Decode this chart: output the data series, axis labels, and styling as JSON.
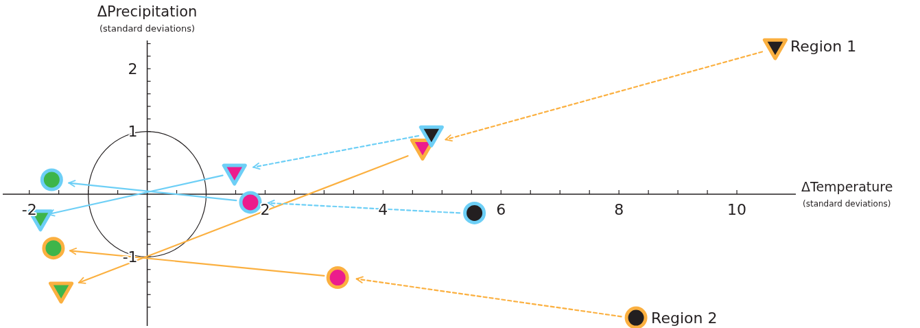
{
  "chart_data": {
    "type": "scatter",
    "xlabel": "ΔTemperature$_{(standard deviations)}$",
    "ylabel": "ΔPrecipitation$_{(standard deviations)}$",
    "xlim": [
      -2.45,
      11
    ],
    "ylim": [
      -2.1,
      2.45
    ],
    "xticks": [
      -2,
      {
        "value": -1.5,
        "label": null
      },
      {
        "value": -1,
        "label": null
      },
      {
        "value": -0.5,
        "label": null
      },
      {
        "value": 0,
        "label": null
      },
      {
        "value": 0.5,
        "label": null
      },
      {
        "value": 1,
        "label": null
      },
      {
        "value": 1.5,
        "label": null
      },
      2,
      {
        "value": 2.5,
        "label": null
      },
      {
        "value": 3,
        "label": null
      },
      {
        "value": 3.5,
        "label": null
      },
      4,
      {
        "value": 4.5,
        "label": null
      },
      {
        "value": 5,
        "label": null
      },
      {
        "value": 5.5,
        "label": null
      },
      6,
      {
        "value": 6.5,
        "label": null
      },
      {
        "value": 7,
        "label": null
      },
      {
        "value": 7.5,
        "label": null
      },
      8,
      {
        "value": 8.5,
        "label": null
      },
      {
        "value": 9,
        "label": null
      },
      {
        "value": 9.5,
        "label": null
      },
      10
    ],
    "yticks": [
      {
        "value": -1.8,
        "label": null
      },
      {
        "value": -1.6,
        "label": null
      },
      {
        "value": -1.4,
        "label": null
      },
      {
        "value": -1.2,
        "label": null
      },
      -1,
      {
        "value": -0.8,
        "label": null
      },
      {
        "value": -0.6,
        "label": null
      },
      {
        "value": -0.4,
        "label": null
      },
      {
        "value": -0.2,
        "label": null
      },
      {
        "value": 0.2,
        "label": null
      },
      {
        "value": 0.4,
        "label": null
      },
      {
        "value": 0.6,
        "label": null
      },
      {
        "value": 0.8,
        "label": null
      },
      1,
      {
        "value": 1.2,
        "label": null
      },
      {
        "value": 1.4,
        "label": null
      },
      {
        "value": 1.6,
        "label": null
      },
      {
        "value": 1.8,
        "label": null
      },
      2,
      {
        "value": 2.2,
        "label": null
      },
      {
        "value": 2.4,
        "label": null
      }
    ],
    "grid": false,
    "series": [
      {
        "type": "line",
        "line_style": "solid",
        "color": "#6dcff6",
        "x": [
          1.28,
          -1.68
        ],
        "values": [
          0.3,
          -0.32
        ]
      },
      {
        "type": "line",
        "line_style": "solid",
        "color": "#fbb040",
        "x": [
          4.42,
          -1.16
        ],
        "values": [
          0.61,
          -1.41
        ]
      },
      {
        "type": "line",
        "line_style": "solid",
        "color": "#6dcff6",
        "x": [
          1.51,
          -1.33
        ],
        "values": [
          -0.1,
          0.18
        ]
      },
      {
        "type": "line",
        "line_style": "solid",
        "color": "#fbb040",
        "x": [
          3.0,
          -1.31
        ],
        "values": [
          -1.3,
          -0.9
        ]
      },
      {
        "type": "line",
        "line_style": "dashed",
        "color": "#fbb040",
        "x": [
          10.43,
          5.06
        ],
        "values": [
          2.27,
          0.87
        ]
      },
      {
        "type": "line",
        "line_style": "dashed",
        "color": "#6dcff6",
        "x": [
          4.6,
          1.8
        ],
        "values": [
          0.93,
          0.43
        ]
      },
      {
        "type": "line",
        "line_style": "dashed",
        "color": "#6dcff6",
        "x": [
          5.3,
          2.05
        ],
        "values": [
          -0.3,
          -0.14
        ]
      },
      {
        "type": "line",
        "line_style": "dashed",
        "color": "#fbb040",
        "x": [
          8.04,
          3.55
        ],
        "values": [
          -1.95,
          -1.35
        ]
      },
      {
        "marker": "triangle",
        "color": "#fbb040",
        "colors": [
          "#231f20",
          "#ec1c8c",
          "#3db54a"
        ],
        "x": [
          10.65,
          4.67,
          -1.46
        ],
        "values": [
          2.36,
          0.76,
          -1.52
        ]
      },
      {
        "marker": "triangle",
        "color": "#6dcff6",
        "colors": [
          "#231f20",
          "#ec1c8c",
          "#3db54a"
        ],
        "x": [
          4.82,
          1.48,
          -1.81
        ],
        "values": [
          0.97,
          0.36,
          -0.37
        ]
      },
      {
        "marker": "circle",
        "color": "#6dcff6",
        "colors": [
          "#231f20",
          "#ec1c8c",
          "#3db54a"
        ],
        "x": [
          5.55,
          1.75,
          -1.62
        ],
        "values": [
          -0.3,
          -0.13,
          0.23
        ]
      },
      {
        "marker": "circle",
        "color": "#fbb040",
        "colors": [
          "#231f20",
          "#ec1c8c",
          "#3db54a"
        ],
        "x": [
          8.29,
          3.23,
          -1.59
        ],
        "values": [
          -1.97,
          -1.33,
          -0.86
        ]
      }
    ],
    "annotations": [
      {
        "text": "Region 1",
        "x": 10.65,
        "y": 2.36
      },
      {
        "text": "Region 2",
        "x": 8.29,
        "y": -1.97
      }
    ]
  }
}
